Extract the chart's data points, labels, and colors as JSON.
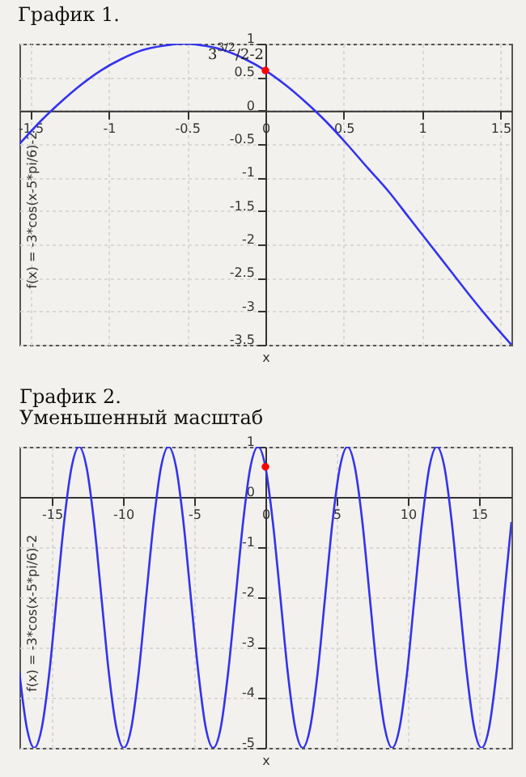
{
  "chart_data": [
    {
      "type": "line",
      "title": "График 1.",
      "xlabel": "x",
      "ylabel": "f(x) = -3*cos(x-5*pi/6)-2",
      "xlim": [
        -1.57,
        1.57
      ],
      "ylim": [
        -3.5,
        1
      ],
      "xticks": [
        -1.5,
        -1,
        -0.5,
        0,
        0.5,
        1,
        1.5
      ],
      "yticks": [
        -3.5,
        -3,
        -2.5,
        -2,
        -1.5,
        -1,
        -0.5,
        0,
        0.5,
        1
      ],
      "grid": true,
      "annotations": [
        {
          "text": "3$^{3/2}$/2-2",
          "x": 0,
          "y": 0.6
        }
      ],
      "series": [
        {
          "type": "line",
          "color": "#3333ee",
          "x": [
            -1.57,
            -1.44,
            -1.31,
            -1.18,
            -1.05,
            -0.92,
            -0.79,
            -0.65,
            -0.52,
            -0.39,
            -0.26,
            -0.13,
            0,
            0.13,
            0.26,
            0.39,
            0.52,
            0.65,
            0.79,
            0.92,
            1.05,
            1.18,
            1.31,
            1.44,
            1.57
          ],
          "values": [
            -0.5,
            -0.17,
            0.12,
            0.38,
            0.6,
            0.77,
            0.9,
            0.97,
            1,
            0.97,
            0.9,
            0.77,
            0.6,
            0.38,
            0.12,
            -0.17,
            -0.5,
            -0.85,
            -1.22,
            -1.61,
            -2,
            -2.39,
            -2.78,
            -3.15,
            -3.5
          ]
        },
        {
          "type": "scatter",
          "color": "#ff0000",
          "x": [
            0
          ],
          "values": [
            0.6
          ]
        }
      ]
    },
    {
      "type": "line",
      "title": "График 2.",
      "subtitle": "Уменьшенный масштаб",
      "xlabel": "x",
      "ylabel": "f(x) = -3*cos(x-5*pi/6)-2",
      "xlim": [
        -17.28,
        17.28
      ],
      "ylim": [
        -5,
        1
      ],
      "xticks": [
        -15,
        -10,
        -5,
        0,
        5,
        10,
        15
      ],
      "yticks": [
        -5,
        -4,
        -3,
        -2,
        -1,
        0,
        1
      ],
      "grid": true,
      "series": [
        {
          "type": "line",
          "color": "#3333ee",
          "x": [
            -17.28,
            -16.76,
            -16.23,
            -15.71,
            -15.18,
            -14.66,
            -14.14,
            -13.61,
            -13.09,
            -12.57,
            -12.04,
            -11.52,
            -11.0,
            -10.47,
            -9.95,
            -9.42,
            -8.9,
            -8.38,
            -7.85,
            -7.33,
            -6.81,
            -6.28,
            -5.76,
            -5.24,
            -4.71,
            -4.19,
            -3.67,
            -3.14,
            -2.62,
            -2.09,
            -1.57,
            -1.05,
            -0.52,
            0,
            0.52,
            1.05,
            1.57,
            2.09,
            2.62,
            3.14,
            3.67,
            4.19,
            4.71,
            5.24,
            5.76,
            6.28,
            6.81,
            7.33,
            7.85,
            8.38,
            8.9,
            9.42,
            9.95,
            10.47,
            11.0,
            11.52,
            12.04,
            12.57,
            13.09,
            13.61,
            14.14,
            14.66,
            15.18,
            15.71,
            16.23,
            16.76,
            17.28
          ],
          "values": [
            -3.5,
            -4.6,
            -5,
            -4.6,
            -3.5,
            -2,
            -0.5,
            0.6,
            1,
            0.6,
            -0.5,
            -2,
            -3.5,
            -4.6,
            -5,
            -4.6,
            -3.5,
            -2,
            -0.5,
            0.6,
            1,
            0.6,
            -0.5,
            -2,
            -3.5,
            -4.6,
            -5,
            -4.6,
            -3.5,
            -2,
            -0.5,
            0.6,
            1,
            0.6,
            -0.5,
            -2,
            -3.5,
            -4.6,
            -5,
            -4.6,
            -3.5,
            -2,
            -0.5,
            0.6,
            1,
            0.6,
            -0.5,
            -2,
            -3.5,
            -4.6,
            -5,
            -4.6,
            -3.5,
            -2,
            -0.5,
            0.6,
            1,
            0.6,
            -0.5,
            -2,
            -3.5,
            -4.6,
            -5,
            -4.6,
            -3.5,
            -2,
            -0.5
          ]
        },
        {
          "type": "scatter",
          "color": "#ff0000",
          "x": [
            0
          ],
          "values": [
            0.6
          ]
        }
      ]
    }
  ]
}
